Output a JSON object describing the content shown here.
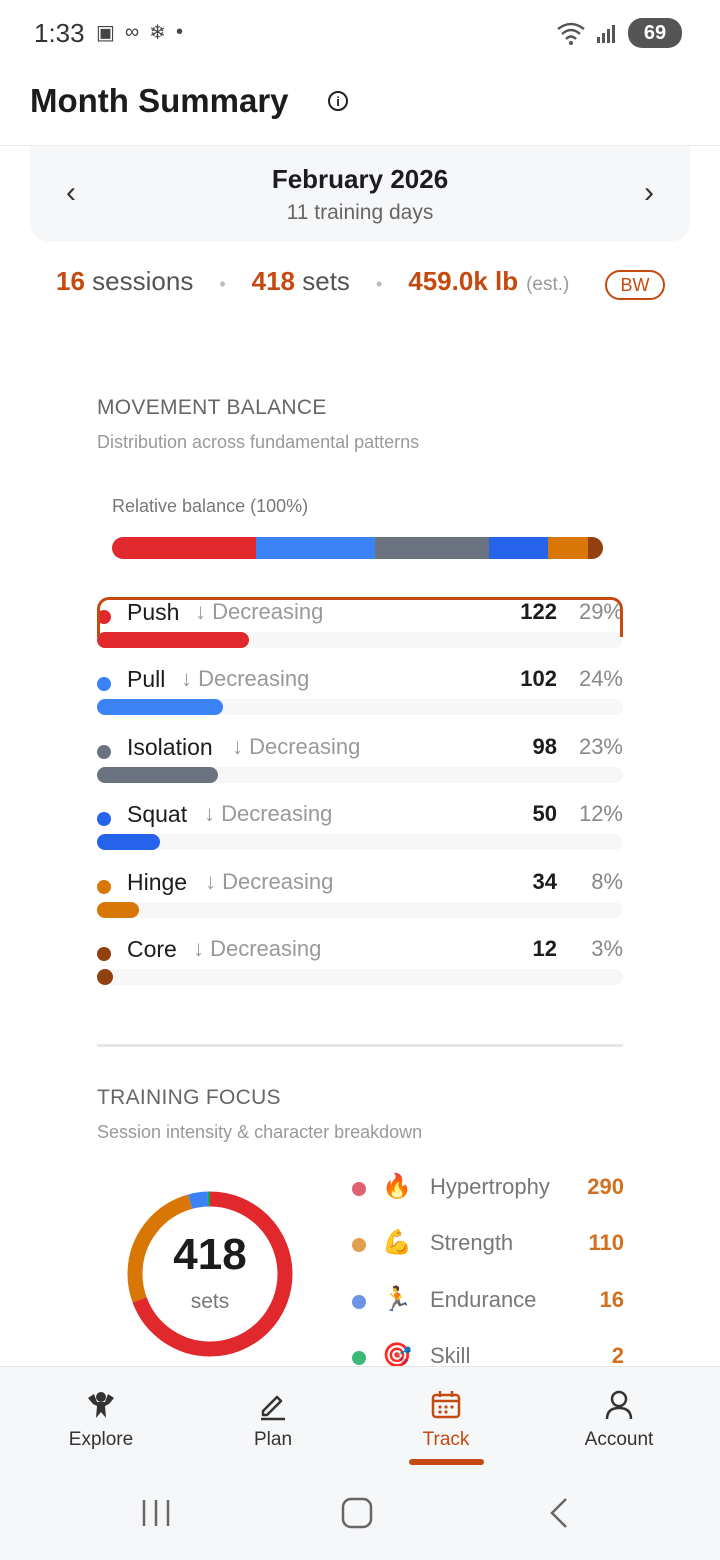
{
  "status_bar": {
    "time": "1:33",
    "battery": "69"
  },
  "header": {
    "title": "Month Summary"
  },
  "month": {
    "title": "February 2026",
    "subtitle": "11 training days"
  },
  "summary": {
    "sessions_value": "16",
    "sessions_label": "sessions",
    "sets_value": "418",
    "sets_label": "sets",
    "volume_value": "459.0k lb",
    "volume_note": "(est.)",
    "bw_label": "BW"
  },
  "movement_balance": {
    "title": "MOVEMENT BALANCE",
    "subtitle": "Distribution across fundamental patterns",
    "relative_label": "Relative balance (100%)",
    "items": [
      {
        "name": "Push",
        "trend": "↓ Decreasing",
        "count": "122",
        "pct": "29%",
        "fraction": 0.29,
        "color": "#e0282d"
      },
      {
        "name": "Pull",
        "trend": "↓ Decreasing",
        "count": "102",
        "pct": "24%",
        "fraction": 0.24,
        "color": "#3b82f6"
      },
      {
        "name": "Isolation",
        "trend": "↓ Decreasing",
        "count": "98",
        "pct": "23%",
        "fraction": 0.23,
        "color": "#6b7280"
      },
      {
        "name": "Squat",
        "trend": "↓ Decreasing",
        "count": "50",
        "pct": "12%",
        "fraction": 0.12,
        "color": "#2563eb"
      },
      {
        "name": "Hinge",
        "trend": "↓ Decreasing",
        "count": "34",
        "pct": "8%",
        "fraction": 0.08,
        "color": "#d97706"
      },
      {
        "name": "Core",
        "trend": "↓ Decreasing",
        "count": "12",
        "pct": "3%",
        "fraction": 0.03,
        "color": "#92400e"
      }
    ]
  },
  "training_focus": {
    "title": "TRAINING FOCUS",
    "subtitle": "Session intensity & character breakdown",
    "total": "418",
    "total_label": "sets",
    "items": [
      {
        "name": "Hypertrophy",
        "emoji": "🔥",
        "value": "290",
        "amount": 290,
        "color": "#e0282d",
        "dot_color": "#e06070"
      },
      {
        "name": "Strength",
        "emoji": "💪",
        "value": "110",
        "amount": 110,
        "color": "#d97706",
        "dot_color": "#e0a050"
      },
      {
        "name": "Endurance",
        "emoji": "🏃",
        "value": "16",
        "amount": 16,
        "color": "#3b82f6",
        "dot_color": "#6b93e8"
      },
      {
        "name": "Skill",
        "emoji": "🎯",
        "value": "2",
        "amount": 2,
        "color": "#16a34a",
        "dot_color": "#3cb878"
      }
    ]
  },
  "bottom_nav": {
    "items": [
      {
        "label": "Explore",
        "icon": "explore-icon"
      },
      {
        "label": "Plan",
        "icon": "pencil-icon"
      },
      {
        "label": "Track",
        "icon": "calendar-icon"
      },
      {
        "label": "Account",
        "icon": "person-icon"
      }
    ],
    "active": "Track",
    "accent": "#c44a10"
  }
}
